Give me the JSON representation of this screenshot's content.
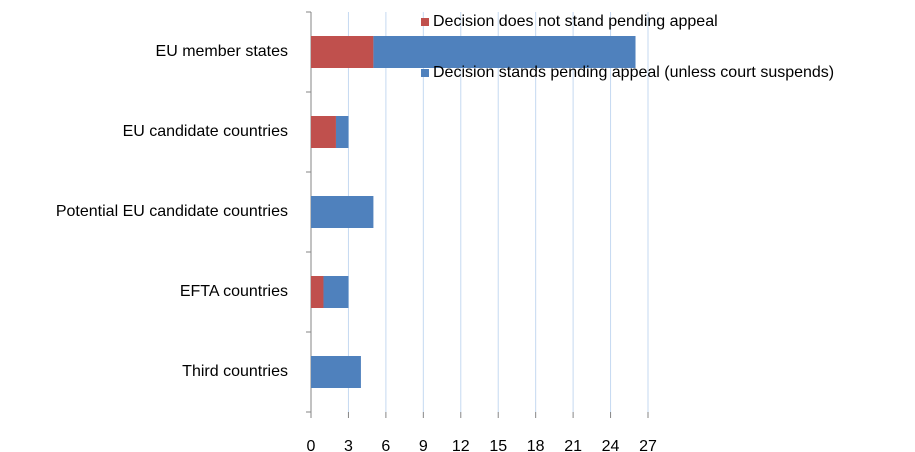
{
  "chart_data": {
    "type": "hbar_stacked",
    "categories": [
      "EU member states",
      "EU candidate countries",
      "Potential EU candidate countries",
      "EFTA countries",
      "Third countries"
    ],
    "series": [
      {
        "name": "Decision does not stand pending appeal",
        "color": "#c0504d",
        "values": [
          5,
          2,
          0,
          1,
          0
        ]
      },
      {
        "name": "Decision stands pending appeal (unless court suspends)",
        "color": "#4f81bd",
        "values": [
          21,
          1,
          5,
          2,
          4
        ]
      }
    ],
    "xlim": [
      0,
      27
    ],
    "xticks": [
      0,
      3,
      6,
      9,
      12,
      15,
      18,
      21,
      24,
      27
    ],
    "grid": true
  }
}
